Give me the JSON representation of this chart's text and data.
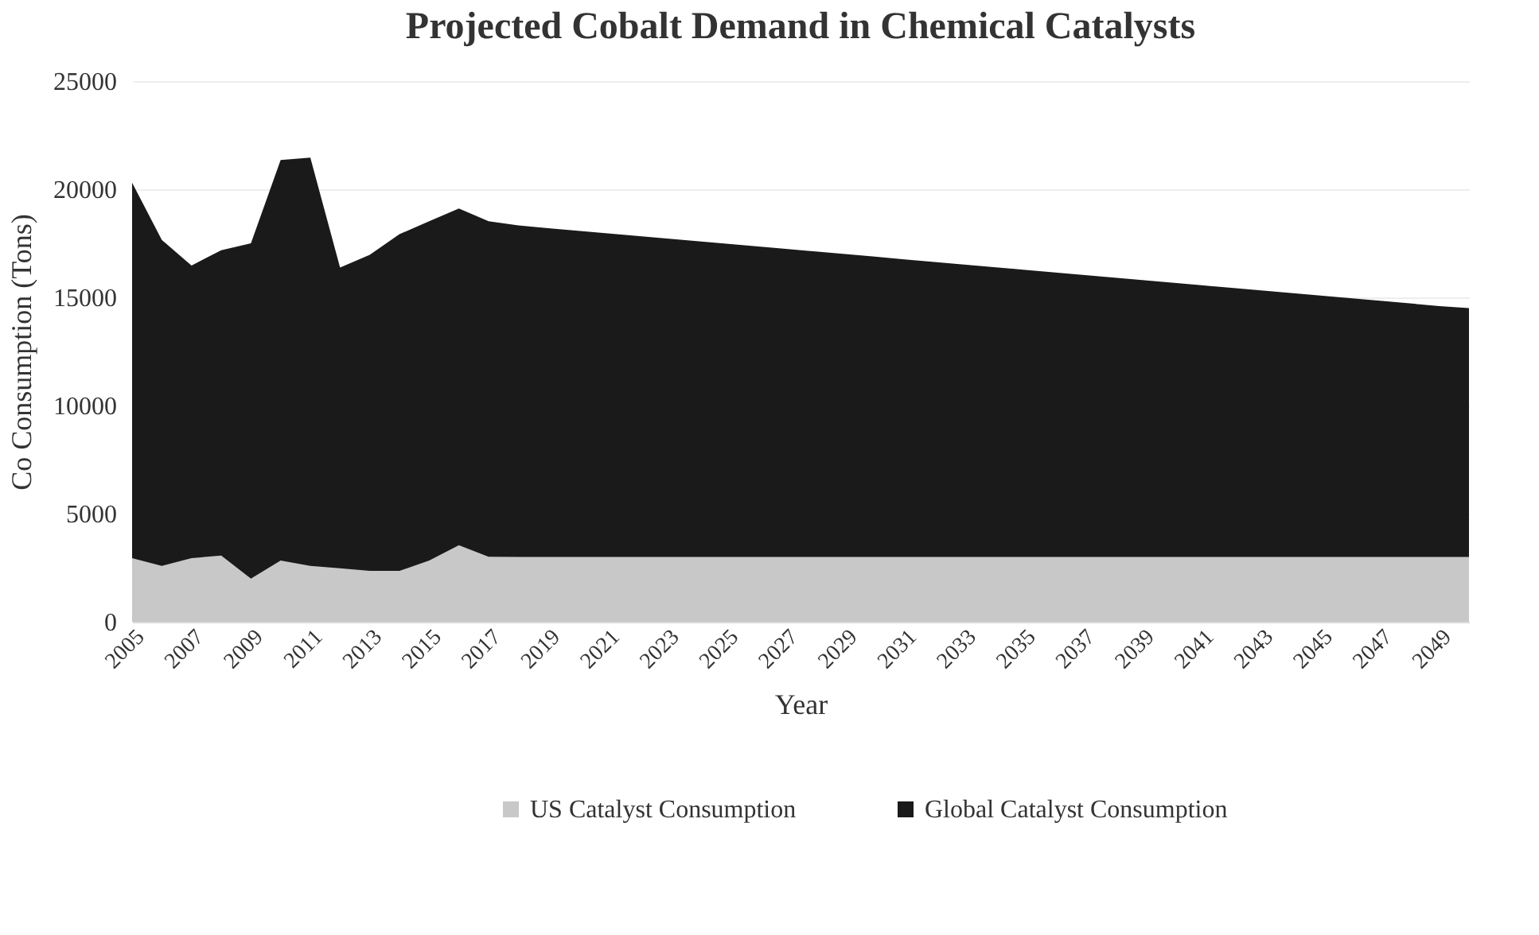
{
  "chart_data": {
    "type": "area",
    "title": "Projected Cobalt Demand in Chemical Catalysts",
    "xlabel": "Year",
    "ylabel": "Co Consumption (Tons)",
    "categories": [
      "2005",
      null,
      "2007",
      null,
      "2009",
      null,
      "2011",
      null,
      "2013",
      null,
      "2015",
      null,
      "2017",
      null,
      "2019",
      null,
      "2021",
      null,
      "2023",
      null,
      "2025",
      null,
      "2027",
      null,
      "2029",
      null,
      "2031",
      null,
      "2033",
      null,
      "2035",
      null,
      "2037",
      null,
      "2039",
      null,
      "2041",
      null,
      "2043",
      null,
      "2045",
      null,
      "2047",
      null,
      "2049",
      null
    ],
    "series": [
      {
        "name": "US Catalyst Consumption",
        "color": "#c8c8c8",
        "values": [
          2940,
          2580,
          2940,
          3060,
          1990,
          2830,
          2580,
          2470,
          2350,
          2350,
          2830,
          3540,
          3010,
          3000,
          3000,
          3000,
          3000,
          3000,
          3000,
          3000,
          3000,
          3000,
          3000,
          3000,
          3000,
          3000,
          3000,
          3000,
          3000,
          3000,
          3000,
          3000,
          3000,
          3000,
          3000,
          3000,
          3000,
          3000,
          3000,
          3000,
          3000,
          3000,
          3000,
          3000,
          3000,
          3000
        ]
      },
      {
        "name": "Global Catalyst Consumption",
        "color": "#1a1a1a",
        "values": [
          20300,
          17660,
          16470,
          17180,
          17500,
          21350,
          21460,
          16380,
          16970,
          17920,
          18520,
          19110,
          18520,
          18330,
          18200,
          18080,
          17960,
          17840,
          17720,
          17600,
          17480,
          17360,
          17240,
          17120,
          17000,
          16880,
          16760,
          16640,
          16520,
          16400,
          16280,
          16160,
          16040,
          15920,
          15800,
          15680,
          15560,
          15440,
          15320,
          15200,
          15080,
          14960,
          14840,
          14720,
          14600,
          14500
        ]
      }
    ],
    "ylim": [
      0,
      25000
    ],
    "yticks": [
      0,
      5000,
      10000,
      15000,
      20000,
      25000
    ],
    "grid": "y",
    "legend": "bottom"
  }
}
